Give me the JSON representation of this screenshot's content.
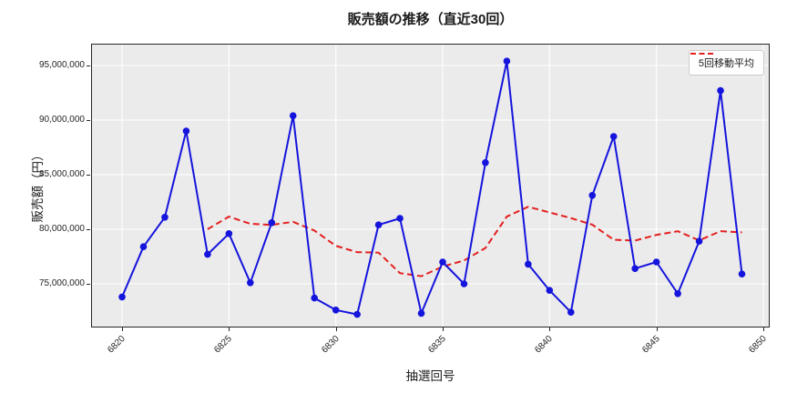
{
  "title": "販売額の推移（直近30回）",
  "legend": {
    "ma_label": "5回移動平均",
    "position": "upper right"
  },
  "colors": {
    "sales_line": "#1414dd",
    "ma_line": "#e41f1f",
    "plot_bg": "#ebebeb",
    "grid": "#ffffff",
    "spine": "#262626",
    "figure_bg": "#ffffff",
    "text": "#1a1a1a",
    "legend_border": "#cccccc",
    "legend_bg": "#ffffff"
  },
  "chart_data": {
    "type": "line",
    "title": "販売額の推移（直近30回）",
    "xlabel": "抽選回号",
    "ylabel": "販売額（円）",
    "grid": true,
    "legend_position": "upper right",
    "xlim": [
      6818.55,
      6850.3
    ],
    "ylim": [
      71000000,
      97000000
    ],
    "x_ticks": [
      6820,
      6825,
      6830,
      6835,
      6840,
      6845,
      6850
    ],
    "y_ticks": [
      75000000,
      80000000,
      85000000,
      90000000,
      95000000
    ],
    "y_tick_labels": [
      "75,000,000",
      "80,000,000",
      "85,000,000",
      "90,000,000",
      "95,000,000"
    ],
    "x": [
      6820,
      6821,
      6822,
      6823,
      6824,
      6825,
      6826,
      6827,
      6828,
      6829,
      6830,
      6831,
      6832,
      6833,
      6834,
      6835,
      6836,
      6837,
      6838,
      6839,
      6840,
      6841,
      6842,
      6843,
      6844,
      6845,
      6846,
      6847,
      6848,
      6849
    ],
    "series": [
      {
        "name": "販売額",
        "style": "solid",
        "marker": "circle",
        "color": "#1414dd",
        "values": [
          73800000,
          78400000,
          81100000,
          89000000,
          77700000,
          79600000,
          75100000,
          80600000,
          90400000,
          73700000,
          72600000,
          72200000,
          80400000,
          81000000,
          72300000,
          77000000,
          75000000,
          86100000,
          95400000,
          76800000,
          74400000,
          72400000,
          83100000,
          88500000,
          76400000,
          77000000,
          74100000,
          78900000,
          92700000,
          75900000
        ]
      },
      {
        "name": "5回移動平均",
        "style": "dashed",
        "marker": "none",
        "color": "#e41f1f",
        "values": [
          null,
          null,
          null,
          null,
          80000000,
          81160000,
          80500000,
          80400000,
          80680000,
          79880000,
          78480000,
          77900000,
          77860000,
          75980000,
          75700000,
          76580000,
          77140000,
          78280000,
          81160000,
          82060000,
          81540000,
          81020000,
          80420000,
          79040000,
          78960000,
          79480000,
          79820000,
          78980000,
          79820000,
          79720000
        ]
      }
    ]
  }
}
